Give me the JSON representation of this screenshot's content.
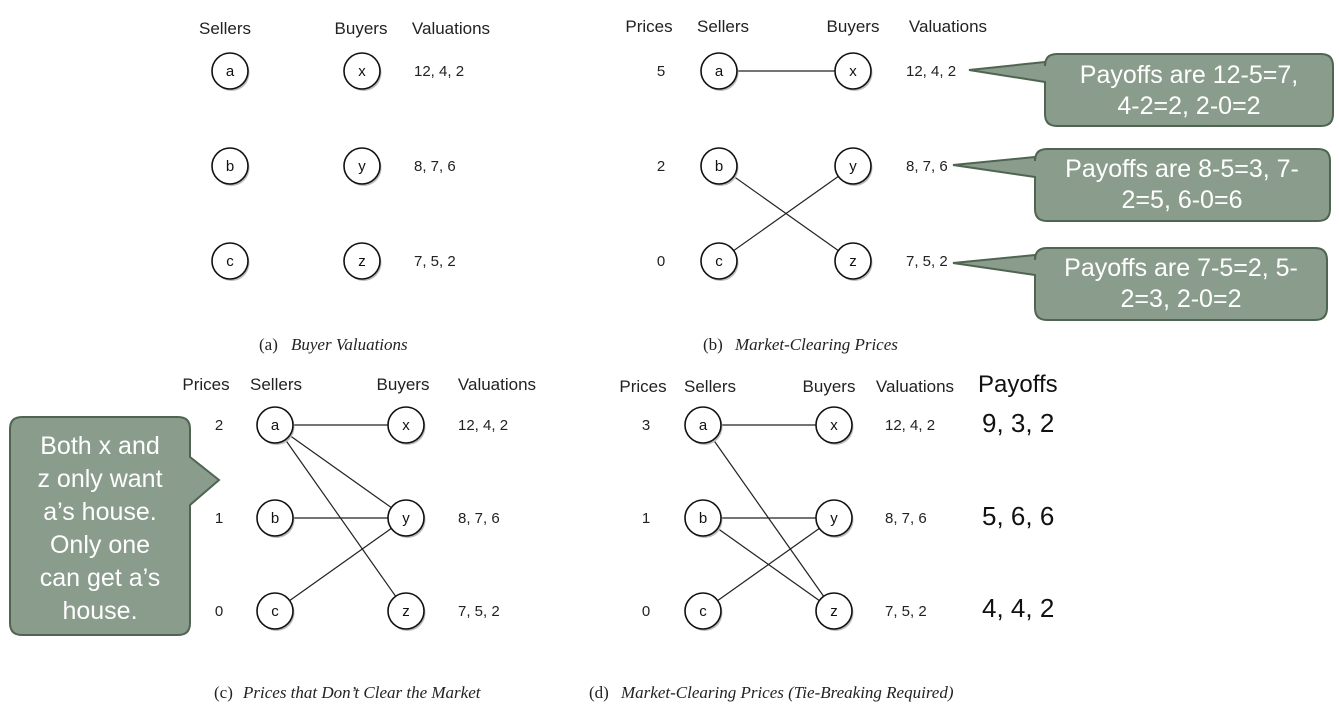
{
  "headers": {
    "prices": "Prices",
    "sellers": "Sellers",
    "buyers": "Buyers",
    "valuations": "Valuations",
    "payoffs": "Payoffs"
  },
  "sellers": [
    "a",
    "b",
    "c"
  ],
  "buyers": [
    "x",
    "y",
    "z"
  ],
  "valuations": [
    "12, 4, 2",
    "8, 7, 6",
    "7, 5, 2"
  ],
  "panels": {
    "a": {
      "caption_label": "(a)",
      "caption_title": "Buyer Valuations",
      "prices": [],
      "edges": []
    },
    "b": {
      "caption_label": "(b)",
      "caption_title": "Market-Clearing Prices",
      "prices": [
        "5",
        "2",
        "0"
      ],
      "edges": [
        [
          "a",
          "x"
        ],
        [
          "b",
          "z"
        ],
        [
          "c",
          "y"
        ]
      ]
    },
    "c": {
      "caption_label": "(c)",
      "caption_title": "Prices that Don’t Clear the Market",
      "prices": [
        "2",
        "1",
        "0"
      ],
      "edges": [
        [
          "a",
          "x"
        ],
        [
          "a",
          "y"
        ],
        [
          "a",
          "z"
        ],
        [
          "b",
          "y"
        ],
        [
          "c",
          "y"
        ]
      ]
    },
    "d": {
      "caption_label": "(d)",
      "caption_title": "Market-Clearing Prices (Tie-Breaking Required)",
      "prices": [
        "3",
        "1",
        "0"
      ],
      "edges": [
        [
          "a",
          "x"
        ],
        [
          "a",
          "z"
        ],
        [
          "b",
          "y"
        ],
        [
          "b",
          "z"
        ],
        [
          "c",
          "y"
        ]
      ],
      "payoffs": [
        "9, 3, 2",
        "5, 6, 6",
        "4, 4, 2"
      ]
    }
  },
  "callouts": {
    "x": [
      "Payoffs are 12-5=7,",
      "4-2=2, 2-0=2"
    ],
    "y": [
      "Payoffs are 8-5=3, 7-",
      "2=5, 6-0=6"
    ],
    "z": [
      "Payoffs are 7-5=2, 5-",
      "2=3, 2-0=2"
    ],
    "left": [
      "Both x and",
      "z only want",
      "a’s house.",
      "Only one",
      "can get a’s",
      "house."
    ]
  },
  "colors": {
    "callout_fill": "#8a9c8c",
    "callout_border": "#4f6552",
    "callout_text": "#ffffff"
  }
}
